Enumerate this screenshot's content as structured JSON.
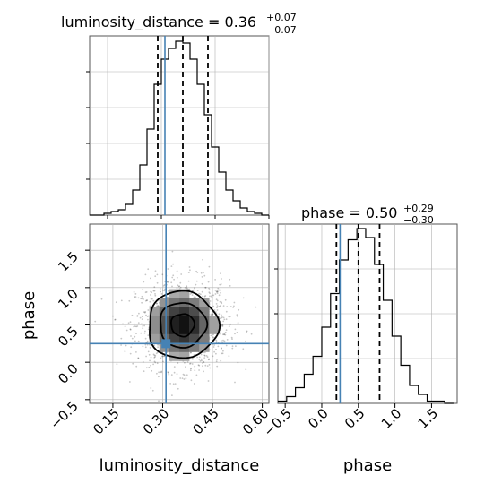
{
  "chart_data": [
    {
      "type": "histogram",
      "panel": "luminosity_distance marginal",
      "title": {
        "text": "luminosity_distance = 0.36",
        "upper": "+0.07",
        "lower": "−0.07"
      },
      "x_bin_edges": [
        0.1,
        0.12,
        0.14,
        0.16,
        0.18,
        0.2,
        0.22,
        0.24,
        0.26,
        0.28,
        0.3,
        0.32,
        0.34,
        0.36,
        0.38,
        0.4,
        0.42,
        0.44,
        0.46,
        0.48,
        0.5,
        0.52,
        0.54,
        0.56,
        0.58,
        0.6
      ],
      "counts": [
        0,
        0,
        1,
        2,
        3,
        6,
        14,
        28,
        48,
        73,
        87,
        93,
        97,
        96,
        87,
        73,
        56,
        38,
        24,
        14,
        8,
        4,
        2,
        1,
        0
      ],
      "quantile_lines": [
        0.29,
        0.36,
        0.43
      ],
      "truth_value": 0.31,
      "xlim": [
        0.1,
        0.6
      ],
      "ylim": [
        0,
        100
      ],
      "grid": true
    },
    {
      "type": "scatter",
      "panel": "phase vs luminosity_distance",
      "xlabel": "luminosity_distance",
      "ylabel": "phase",
      "xlim": [
        0.08,
        0.62
      ],
      "ylim": [
        -0.55,
        1.85
      ],
      "x_ticks": [
        "0.15",
        "0.30",
        "0.45",
        "0.60"
      ],
      "x_tick_values": [
        0.15,
        0.3,
        0.45,
        0.6
      ],
      "y_ticks": [
        "−0.5",
        "0.0",
        "0.5",
        "1.0",
        "1.5"
      ],
      "y_tick_values": [
        -0.5,
        0.0,
        0.5,
        1.0,
        1.5
      ],
      "density_center": {
        "x": 0.36,
        "y": 0.5
      },
      "density_sigma": {
        "x": 0.07,
        "y": 0.3
      },
      "contour_levels": [
        0.5,
        1.0,
        1.5
      ],
      "truth": {
        "x": 0.31,
        "y": 0.25
      },
      "grid": true
    },
    {
      "type": "histogram",
      "panel": "phase marginal",
      "title": {
        "text": "phase = 0.50",
        "upper": "+0.29",
        "lower": "−0.30"
      },
      "xlabel": "phase",
      "x_bin_edges": [
        -0.6,
        -0.48,
        -0.36,
        -0.24,
        -0.12,
        0.0,
        0.12,
        0.24,
        0.36,
        0.48,
        0.6,
        0.72,
        0.84,
        0.96,
        1.08,
        1.2,
        1.32,
        1.44,
        1.56,
        1.68,
        1.8
      ],
      "counts": [
        1,
        3,
        7,
        13,
        21,
        34,
        49,
        64,
        73,
        78,
        74,
        62,
        46,
        30,
        17,
        8,
        4,
        1,
        1,
        0
      ],
      "quantile_lines": [
        0.2,
        0.5,
        0.79
      ],
      "truth_value": 0.25,
      "xlim": [
        -0.6,
        1.85
      ],
      "ylim": [
        0,
        80
      ],
      "x_ticks": [
        "−0.5",
        "0.0",
        "0.5",
        "1.0",
        "1.5"
      ],
      "x_tick_values": [
        -0.5,
        0.0,
        0.5,
        1.0,
        1.5
      ],
      "grid": true
    }
  ],
  "colors": {
    "truth": "#4682b4",
    "hist": "#000000",
    "grid": "#b0b0b0",
    "density_dark": "#000000",
    "frame": "#555555"
  }
}
